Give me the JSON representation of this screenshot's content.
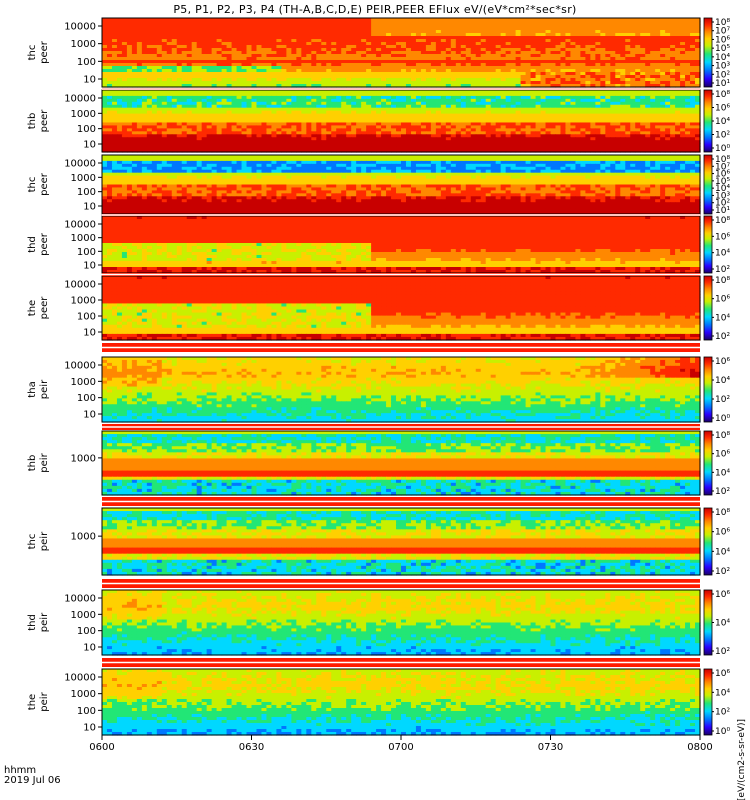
{
  "chart_data": {
    "type": "heatmap",
    "title": "P5, P1, P2, P3, P4 (TH-A,B,C,D,E) PEIR,PEER EFlux eV/(eV*cm²*sec*sr)",
    "colorbar_label": "[eV/(cm2-s-sr-eV)]",
    "colorscale": [
      "#1a0066",
      "#2a00ff",
      "#0077ff",
      "#00d8ff",
      "#22e676",
      "#c8f000",
      "#ffd000",
      "#ff8800",
      "#ff2a00",
      "#c80000"
    ],
    "xaxis": {
      "ticks": [
        "0600",
        "0630",
        "0700",
        "0730",
        "0800"
      ],
      "range_minutes": [
        0,
        120
      ],
      "label_lines": [
        "hhmm",
        "2019 Jul 06"
      ]
    },
    "panels": [
      {
        "label_lines": [
          "thc",
          "peer"
        ],
        "y_ticks": [
          "10000",
          "1000",
          "100",
          "10"
        ],
        "cb_ticks": [
          "10⁸",
          "10⁷",
          "10⁶",
          "10⁵",
          "10⁴",
          "10³",
          "10²",
          "10¹"
        ],
        "profile": "electron-a"
      },
      {
        "label_lines": [
          "thb",
          "peer"
        ],
        "y_ticks": [
          "10000",
          "1000",
          "100",
          "10"
        ],
        "cb_ticks": [
          "10⁸",
          "10⁶",
          "10⁴",
          "10²",
          "10⁰"
        ],
        "profile": "electron-b"
      },
      {
        "label_lines": [
          "thc",
          "peer"
        ],
        "y_ticks": [
          "10000",
          "1000",
          "100",
          "10"
        ],
        "cb_ticks": [
          "10⁸",
          "10⁷",
          "10⁶",
          "10⁵",
          "10⁴",
          "10³",
          "10²",
          "10¹"
        ],
        "profile": "electron-c"
      },
      {
        "label_lines": [
          "thd",
          "peer"
        ],
        "y_ticks": [
          "10000",
          "1000",
          "100",
          "10"
        ],
        "cb_ticks": [
          "10⁸",
          "10⁶",
          "10⁴",
          "10²"
        ],
        "profile": "electron-d"
      },
      {
        "label_lines": [
          "the",
          "peer"
        ],
        "y_ticks": [
          "10000",
          "1000",
          "100",
          "10"
        ],
        "cb_ticks": [
          "10⁸",
          "10⁶",
          "10⁴",
          "10²"
        ],
        "profile": "electron-e"
      },
      {
        "label_lines": [
          "tha",
          "peir"
        ],
        "y_ticks": [
          "10000",
          "1000",
          "100",
          "10"
        ],
        "cb_ticks": [
          "10⁶",
          "10⁴",
          "10²",
          "10⁰"
        ],
        "profile": "ion-a"
      },
      {
        "label_lines": [
          "thb",
          "peir"
        ],
        "y_ticks": [
          "1000"
        ],
        "cb_ticks": [
          "10⁸",
          "10⁶",
          "10⁴",
          "10²"
        ],
        "profile": "ion-b"
      },
      {
        "label_lines": [
          "thc",
          "peir"
        ],
        "y_ticks": [
          "1000"
        ],
        "cb_ticks": [
          "10⁸",
          "10⁶",
          "10⁴",
          "10²"
        ],
        "profile": "ion-c"
      },
      {
        "label_lines": [
          "thd",
          "peir"
        ],
        "y_ticks": [
          "10000",
          "1000",
          "100",
          "10"
        ],
        "cb_ticks": [
          "10⁶",
          "10⁴",
          "10²"
        ],
        "profile": "ion-d"
      },
      {
        "label_lines": [
          "the",
          "peir"
        ],
        "y_ticks": [
          "10000",
          "1000",
          "100",
          "10"
        ],
        "cb_ticks": [
          "10⁶",
          "10⁴",
          "10²",
          "10⁰"
        ],
        "profile": "ion-e"
      }
    ]
  }
}
